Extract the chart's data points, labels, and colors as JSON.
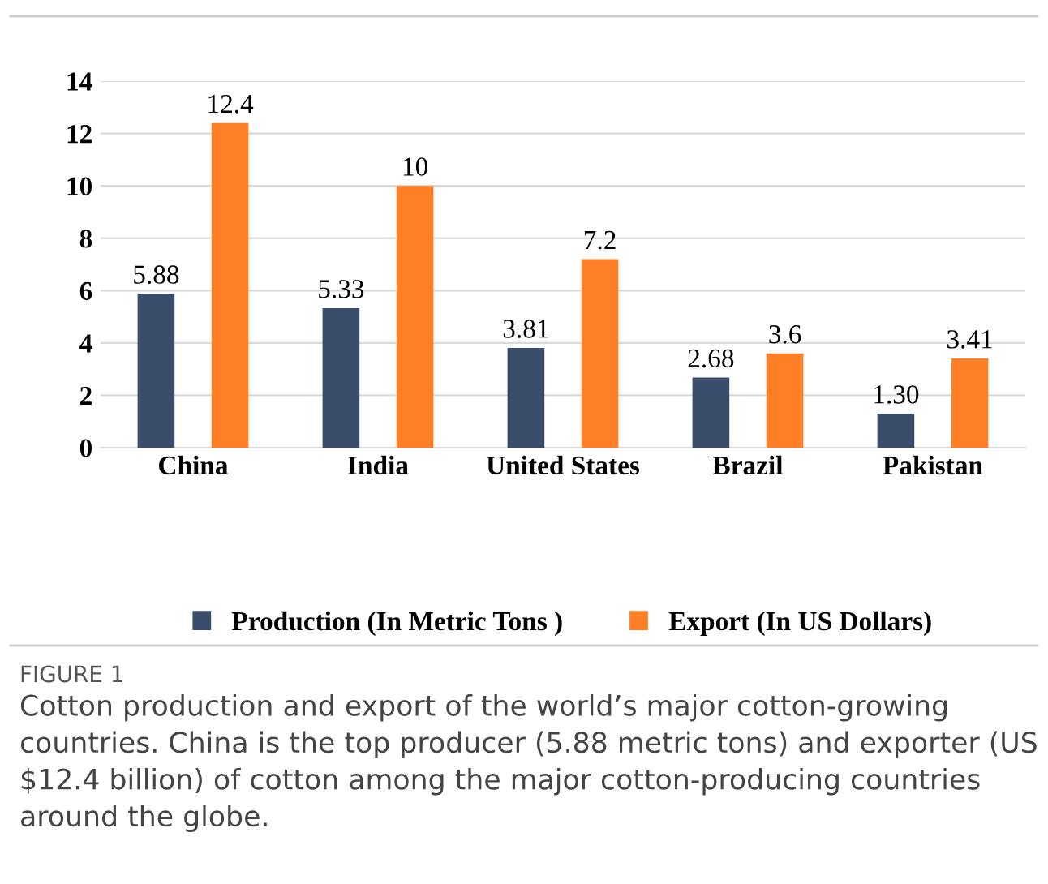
{
  "chart_data": {
    "type": "bar",
    "categories": [
      "China",
      "India",
      "United States",
      "Brazil",
      "Pakistan"
    ],
    "series": [
      {
        "name": "Production (In Metric Tons )",
        "color": "#3a4d6b",
        "values": [
          5.88,
          5.33,
          3.81,
          2.68,
          1.3
        ],
        "value_labels": [
          "5.88",
          "5.33",
          "3.81",
          "2.68",
          "1.30"
        ]
      },
      {
        "name": "Export (In US Dollars)",
        "color": "#ff7f27",
        "values": [
          12.4,
          10,
          7.2,
          3.6,
          3.41
        ],
        "value_labels": [
          "12.4",
          "10",
          "7.2",
          "3.6",
          "3.41"
        ]
      }
    ],
    "ylim": [
      0,
      14
    ],
    "yticks": [
      0,
      2,
      4,
      6,
      8,
      10,
      12,
      14
    ],
    "grid": "y",
    "legend": "bottom",
    "annotations": [
      "FIGURE 1",
      "Cotton production and export of the world’s major cotton-growing countries. China is the top producer (5.88 metric tons) and exporter (US $12.4 billion) of cotton among the major cotton-producing countries around the globe."
    ]
  }
}
